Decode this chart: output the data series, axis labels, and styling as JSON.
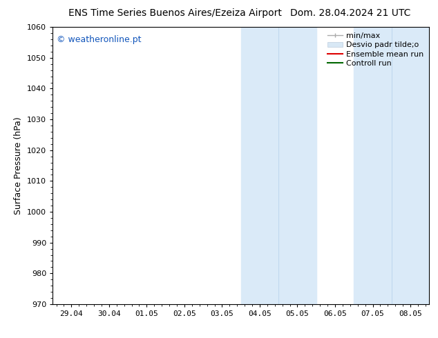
{
  "title_left": "ENS Time Series Buenos Aires/Ezeiza Airport",
  "title_right": "Dom. 28.04.2024 21 UTC",
  "ylabel": "Surface Pressure (hPa)",
  "ylim": [
    970,
    1060
  ],
  "yticks": [
    970,
    980,
    990,
    1000,
    1010,
    1020,
    1030,
    1040,
    1050,
    1060
  ],
  "xtick_labels": [
    "29.04",
    "30.04",
    "01.05",
    "02.05",
    "03.05",
    "04.05",
    "05.05",
    "06.05",
    "07.05",
    "08.05"
  ],
  "xtick_positions": [
    0,
    1,
    2,
    3,
    4,
    5,
    6,
    7,
    8,
    9
  ],
  "xlim": [
    -0.5,
    9.5
  ],
  "shaded_regions": [
    {
      "xmin": 3.5,
      "xmax": 4.5,
      "color": "#ddeeff"
    },
    {
      "xmin": 4.5,
      "xmax": 5.5,
      "color": "#d0e8f8"
    },
    {
      "xmin": 6.5,
      "xmax": 7.5,
      "color": "#ddeeff"
    },
    {
      "xmin": 7.5,
      "xmax": 8.5,
      "color": "#d0e8f8"
    }
  ],
  "watermark_text": "© weatheronline.pt",
  "watermark_color": "#1155bb",
  "background_color": "#ffffff",
  "plot_bg_color": "#ffffff",
  "shade_color_light": "#e8f4fd",
  "shade_color_dark": "#d0e4f2",
  "title_fontsize": 10,
  "tick_fontsize": 8,
  "ylabel_fontsize": 9,
  "legend_fontsize": 8,
  "legend_label_minmax": "min/max",
  "legend_label_desvio": "Desvio padr tilde;o",
  "legend_label_ensemble": "Ensemble mean run",
  "legend_label_control": "Controll run"
}
